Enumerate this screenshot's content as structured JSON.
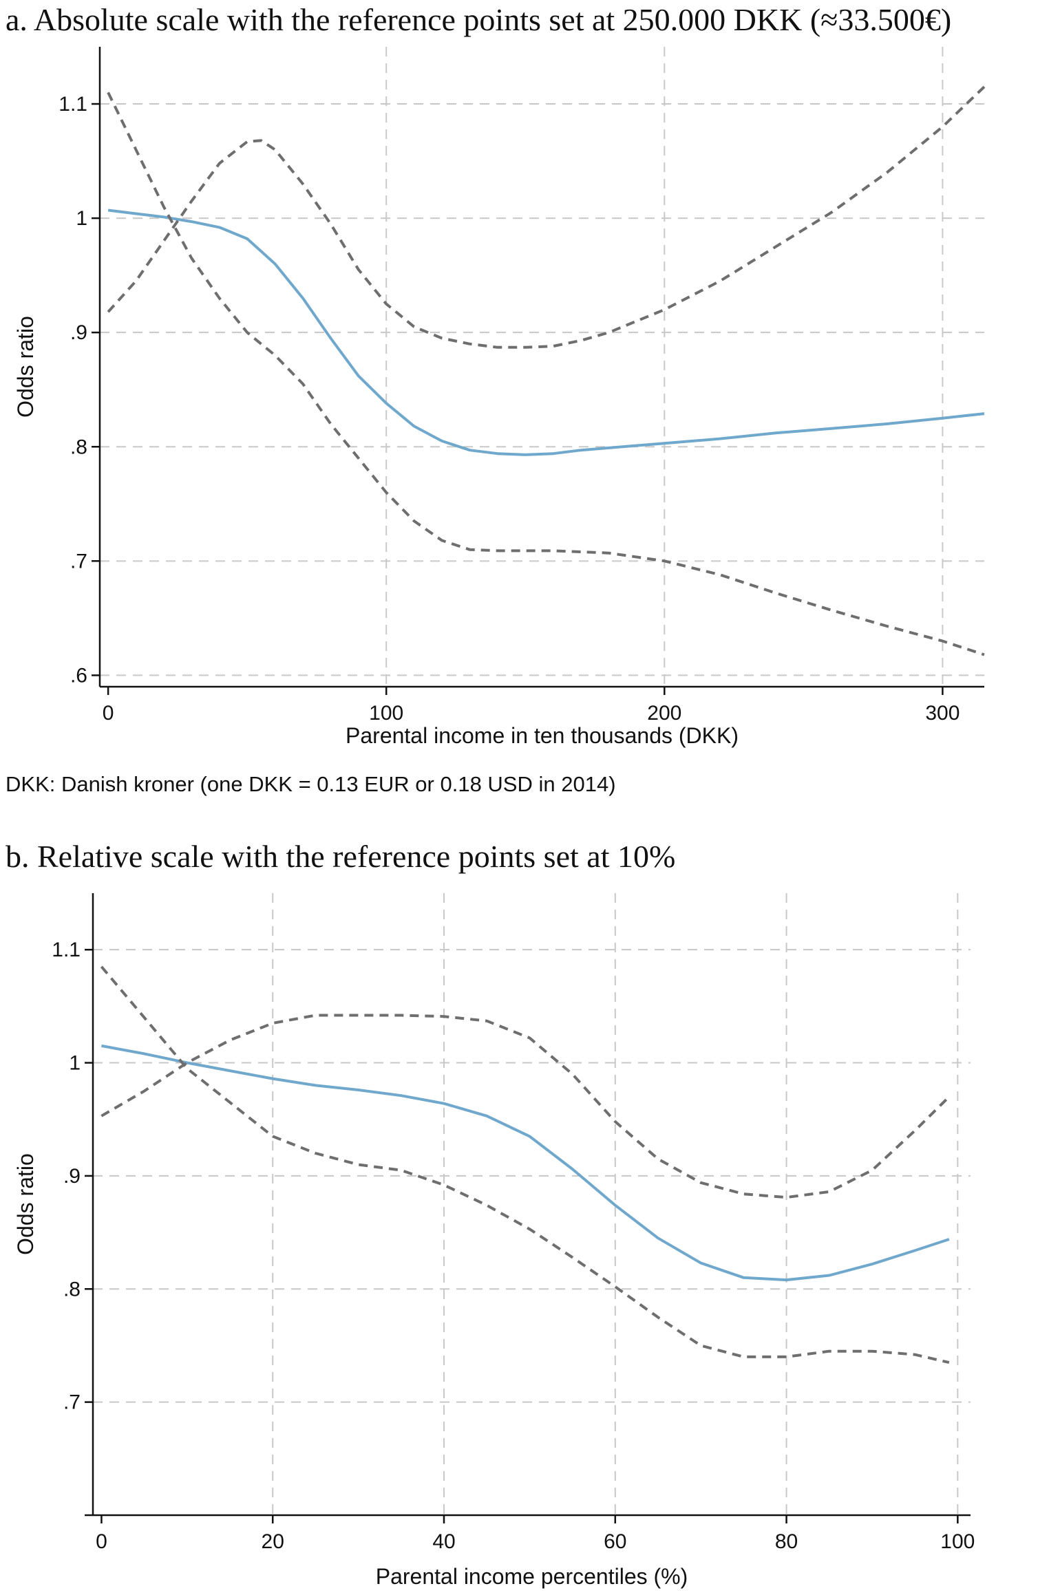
{
  "panels": {
    "a": {
      "title": "a. Absolute scale with the reference points set at 250.000 DKK (≈33.500€)",
      "note": "DKK: Danish kroner (one DKK = 0.13 EUR or 0.18 USD in 2014)"
    },
    "b": {
      "title": "b. Relative scale with the reference points set at 10%"
    }
  },
  "colors": {
    "estimate": "#6fa8cc",
    "ci": "#6e6e6e",
    "grid": "#c8c8c8",
    "axis": "#111111"
  },
  "chart_data": [
    {
      "id": "a",
      "type": "line",
      "xlabel": "Parental income in ten thousands (DKK)",
      "ylabel": "Odds ratio",
      "xlim": [
        -3,
        315
      ],
      "ylim": [
        0.59,
        1.15
      ],
      "xticks": [
        0,
        100,
        200,
        300
      ],
      "xtick_labels": [
        "0",
        "100",
        "200",
        "300"
      ],
      "yticks": [
        0.6,
        0.7,
        0.8,
        0.9,
        1.0,
        1.1
      ],
      "ytick_labels": [
        ".6",
        ".7",
        ".8",
        ".9",
        "1",
        "1.1"
      ],
      "grid": true,
      "series": [
        {
          "role": "estimate",
          "style": "solid",
          "x": [
            0,
            10,
            20,
            30,
            40,
            50,
            60,
            70,
            80,
            90,
            100,
            110,
            120,
            130,
            140,
            150,
            160,
            170,
            180,
            200,
            220,
            240,
            260,
            280,
            300,
            315
          ],
          "y": [
            1.007,
            1.004,
            1.001,
            0.997,
            0.992,
            0.982,
            0.96,
            0.93,
            0.895,
            0.862,
            0.838,
            0.818,
            0.805,
            0.797,
            0.794,
            0.793,
            0.794,
            0.797,
            0.799,
            0.803,
            0.807,
            0.812,
            0.816,
            0.82,
            0.825,
            0.829
          ]
        },
        {
          "role": "upper-ci",
          "style": "dashed",
          "x": [
            0,
            10,
            20,
            30,
            40,
            50,
            55,
            60,
            70,
            80,
            90,
            100,
            110,
            120,
            130,
            140,
            150,
            160,
            170,
            180,
            200,
            220,
            240,
            260,
            280,
            300,
            315
          ],
          "y": [
            0.918,
            0.945,
            0.98,
            1.015,
            1.048,
            1.067,
            1.068,
            1.06,
            1.03,
            0.995,
            0.955,
            0.925,
            0.905,
            0.895,
            0.89,
            0.887,
            0.887,
            0.888,
            0.893,
            0.9,
            0.92,
            0.945,
            0.975,
            1.005,
            1.04,
            1.08,
            1.115
          ]
        },
        {
          "role": "lower-ci",
          "style": "dashed",
          "x": [
            0,
            10,
            20,
            30,
            40,
            50,
            60,
            70,
            80,
            90,
            100,
            110,
            120,
            130,
            140,
            150,
            160,
            170,
            180,
            200,
            220,
            240,
            260,
            280,
            300,
            315
          ],
          "y": [
            1.11,
            1.06,
            1.01,
            0.965,
            0.93,
            0.9,
            0.88,
            0.855,
            0.82,
            0.79,
            0.76,
            0.735,
            0.718,
            0.71,
            0.709,
            0.709,
            0.709,
            0.708,
            0.707,
            0.7,
            0.688,
            0.672,
            0.657,
            0.643,
            0.63,
            0.618
          ]
        }
      ]
    },
    {
      "id": "b",
      "type": "line",
      "xlabel": "Parental income percentiles (%)",
      "ylabel": "Odds ratio",
      "xlim": [
        -1,
        101.5
      ],
      "ylim": [
        0.6,
        1.15
      ],
      "xticks": [
        0,
        20,
        40,
        60,
        80,
        100
      ],
      "xtick_labels": [
        "0",
        "20",
        "40",
        "60",
        "80",
        "100"
      ],
      "yticks": [
        0.6,
        0.7,
        0.8,
        0.9,
        1.0,
        1.1
      ],
      "ytick_labels": [
        "",
        ".7",
        ".8",
        ".9",
        "1",
        "1.1"
      ],
      "grid": true,
      "series": [
        {
          "role": "estimate",
          "style": "solid",
          "x": [
            0,
            5,
            10,
            15,
            20,
            25,
            30,
            35,
            40,
            45,
            50,
            55,
            60,
            65,
            70,
            75,
            80,
            85,
            90,
            95,
            99
          ],
          "y": [
            1.015,
            1.008,
            1.0,
            0.993,
            0.986,
            0.98,
            0.976,
            0.971,
            0.964,
            0.953,
            0.935,
            0.906,
            0.874,
            0.845,
            0.823,
            0.81,
            0.808,
            0.812,
            0.822,
            0.834,
            0.844
          ]
        },
        {
          "role": "upper-ci",
          "style": "dashed",
          "x": [
            0,
            5,
            10,
            15,
            20,
            25,
            30,
            35,
            40,
            45,
            50,
            55,
            60,
            65,
            70,
            75,
            80,
            85,
            90,
            95,
            99
          ],
          "y": [
            0.953,
            0.975,
            1.0,
            1.02,
            1.035,
            1.042,
            1.042,
            1.042,
            1.041,
            1.037,
            1.022,
            0.99,
            0.948,
            0.915,
            0.894,
            0.884,
            0.881,
            0.886,
            0.905,
            0.94,
            0.97
          ]
        },
        {
          "role": "lower-ci",
          "style": "dashed",
          "x": [
            0,
            5,
            10,
            15,
            20,
            25,
            30,
            35,
            40,
            45,
            50,
            55,
            60,
            65,
            70,
            75,
            80,
            85,
            90,
            95,
            99
          ],
          "y": [
            1.085,
            1.04,
            0.995,
            0.965,
            0.935,
            0.92,
            0.91,
            0.905,
            0.892,
            0.874,
            0.853,
            0.828,
            0.802,
            0.775,
            0.75,
            0.74,
            0.74,
            0.745,
            0.745,
            0.742,
            0.735
          ]
        }
      ]
    }
  ]
}
